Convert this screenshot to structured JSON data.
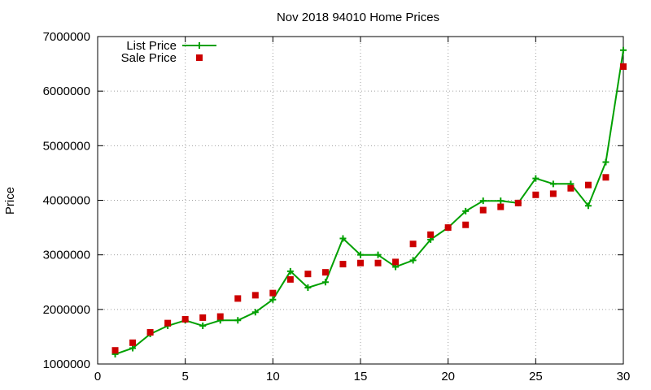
{
  "chart_data": {
    "type": "line",
    "title": "Nov 2018 94010 Home Prices",
    "xlabel": "",
    "ylabel": "Price",
    "xlim": [
      0,
      30
    ],
    "ylim": [
      1000000,
      7000000
    ],
    "x_ticks": [
      0,
      5,
      10,
      15,
      20,
      25,
      30
    ],
    "y_ticks": [
      1000000,
      2000000,
      3000000,
      4000000,
      5000000,
      6000000,
      7000000
    ],
    "grid": true,
    "legend_position": "top-left",
    "x": [
      1,
      2,
      3,
      4,
      5,
      6,
      7,
      8,
      9,
      10,
      11,
      12,
      13,
      14,
      15,
      16,
      17,
      18,
      19,
      20,
      21,
      22,
      23,
      24,
      25,
      26,
      27,
      28,
      29,
      30
    ],
    "series": [
      {
        "name": "List Price",
        "style": "line-plus",
        "color": "#00a000",
        "values": [
          1180000,
          1290000,
          1550000,
          1700000,
          1800000,
          1700000,
          1800000,
          1800000,
          1950000,
          2180000,
          2700000,
          2400000,
          2500000,
          3300000,
          3000000,
          3000000,
          2780000,
          2900000,
          3280000,
          3500000,
          3800000,
          3990000,
          3990000,
          3950000,
          4400000,
          4300000,
          4300000,
          3900000,
          4700000,
          6750000
        ]
      },
      {
        "name": "Sale Price",
        "style": "square-points",
        "color": "#cc0000",
        "values": [
          1250000,
          1390000,
          1580000,
          1750000,
          1820000,
          1850000,
          1870000,
          2200000,
          2260000,
          2300000,
          2550000,
          2650000,
          2680000,
          2830000,
          2850000,
          2850000,
          2870000,
          3200000,
          3370000,
          3500000,
          3550000,
          3820000,
          3880000,
          3950000,
          4100000,
          4120000,
          4220000,
          4280000,
          4420000,
          6450000
        ]
      }
    ]
  }
}
